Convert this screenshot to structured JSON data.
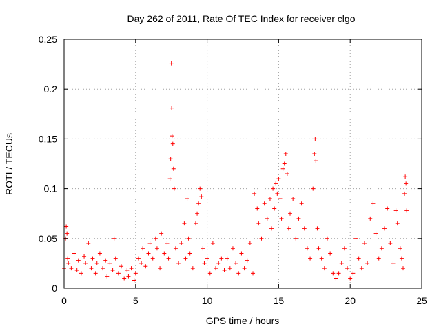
{
  "chart_data": {
    "type": "scatter",
    "title": "Day 262 of 2011, Rate Of TEC Index for receiver clgo",
    "xlabel": "GPS time / hours",
    "ylabel": "ROTI / TECUs",
    "xlim": [
      0,
      25
    ],
    "ylim": [
      0,
      0.25
    ],
    "x_ticks": [
      0,
      5,
      10,
      15,
      20,
      25
    ],
    "x_tick_labels": [
      "0",
      "5",
      "10",
      "15",
      "20",
      "25"
    ],
    "y_ticks": [
      0,
      0.05,
      0.1,
      0.15,
      0.2,
      0.25
    ],
    "y_tick_labels": [
      "0",
      "0.05",
      "0.1",
      "0.15",
      "0.2",
      "0.25"
    ],
    "grid": true,
    "legend": "none",
    "marker": "plus",
    "color": "#ff0000",
    "series": [
      {
        "x": [
          0.0,
          0.1,
          0.15,
          0.2,
          0.25,
          0.3,
          0.5,
          0.7,
          0.9,
          1.0,
          1.2,
          1.4,
          1.5,
          1.7,
          1.9,
          2.0,
          2.2,
          2.3,
          2.5,
          2.7,
          2.9,
          3.0,
          3.2,
          3.4,
          3.5,
          3.6,
          3.8,
          4.0,
          4.2,
          4.4,
          4.5,
          4.7,
          4.9,
          5.0,
          5.2,
          5.4,
          5.5,
          5.7,
          5.9,
          6.0,
          6.2,
          6.4,
          6.5,
          6.7,
          6.8,
          7.0,
          7.2,
          7.3,
          7.4,
          7.45,
          7.5,
          7.52,
          7.55,
          7.6,
          7.65,
          7.7,
          7.8,
          8.0,
          8.2,
          8.4,
          8.5,
          8.6,
          8.7,
          8.8,
          9.0,
          9.2,
          9.3,
          9.4,
          9.5,
          9.6,
          9.7,
          9.8,
          10.0,
          10.2,
          10.4,
          10.6,
          10.8,
          11.0,
          11.2,
          11.4,
          11.6,
          11.8,
          12.0,
          12.2,
          12.4,
          12.6,
          12.8,
          13.0,
          13.2,
          13.3,
          13.5,
          13.6,
          13.8,
          14.0,
          14.2,
          14.4,
          14.5,
          14.6,
          14.7,
          14.8,
          14.9,
          15.0,
          15.1,
          15.2,
          15.3,
          15.4,
          15.5,
          15.6,
          15.7,
          15.8,
          16.0,
          16.2,
          16.4,
          16.6,
          16.8,
          17.0,
          17.2,
          17.4,
          17.5,
          17.55,
          17.6,
          17.7,
          17.8,
          18.0,
          18.2,
          18.4,
          18.6,
          18.8,
          19.0,
          19.2,
          19.4,
          19.6,
          19.8,
          20.0,
          20.2,
          20.4,
          20.6,
          20.8,
          21.0,
          21.2,
          21.4,
          21.6,
          21.8,
          22.0,
          22.2,
          22.4,
          22.6,
          22.8,
          23.0,
          23.2,
          23.3,
          23.5,
          23.6,
          23.7,
          23.8,
          23.85,
          23.9,
          23.95
        ],
        "y": [
          0.02,
          0.05,
          0.062,
          0.055,
          0.03,
          0.025,
          0.02,
          0.035,
          0.018,
          0.028,
          0.015,
          0.032,
          0.025,
          0.045,
          0.02,
          0.03,
          0.015,
          0.025,
          0.035,
          0.02,
          0.028,
          0.012,
          0.025,
          0.018,
          0.05,
          0.03,
          0.015,
          0.022,
          0.01,
          0.018,
          0.012,
          0.02,
          0.008,
          0.015,
          0.03,
          0.025,
          0.04,
          0.022,
          0.035,
          0.045,
          0.03,
          0.05,
          0.04,
          0.02,
          0.055,
          0.035,
          0.045,
          0.03,
          0.11,
          0.13,
          0.226,
          0.181,
          0.153,
          0.145,
          0.12,
          0.1,
          0.04,
          0.025,
          0.045,
          0.065,
          0.03,
          0.09,
          0.05,
          0.035,
          0.02,
          0.065,
          0.075,
          0.085,
          0.1,
          0.092,
          0.04,
          0.025,
          0.03,
          0.015,
          0.045,
          0.02,
          0.025,
          0.03,
          0.018,
          0.03,
          0.02,
          0.04,
          0.025,
          0.015,
          0.035,
          0.02,
          0.028,
          0.045,
          0.015,
          0.095,
          0.08,
          0.065,
          0.05,
          0.085,
          0.07,
          0.09,
          0.06,
          0.1,
          0.08,
          0.105,
          0.095,
          0.11,
          0.09,
          0.07,
          0.12,
          0.125,
          0.135,
          0.115,
          0.06,
          0.075,
          0.09,
          0.05,
          0.07,
          0.085,
          0.06,
          0.04,
          0.03,
          0.1,
          0.135,
          0.15,
          0.128,
          0.06,
          0.04,
          0.03,
          0.02,
          0.05,
          0.035,
          0.015,
          0.01,
          0.015,
          0.025,
          0.04,
          0.02,
          0.01,
          0.015,
          0.05,
          0.03,
          0.02,
          0.045,
          0.025,
          0.07,
          0.085,
          0.055,
          0.03,
          0.04,
          0.06,
          0.08,
          0.045,
          0.025,
          0.078,
          0.065,
          0.04,
          0.03,
          0.02,
          0.095,
          0.112,
          0.105,
          0.078
        ]
      }
    ]
  }
}
